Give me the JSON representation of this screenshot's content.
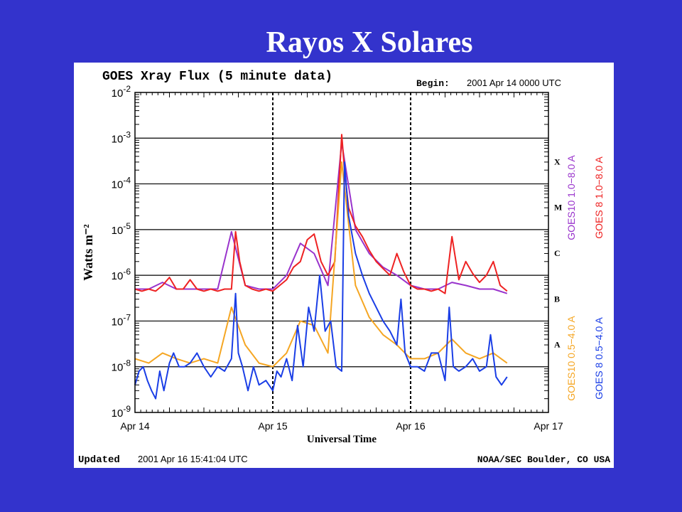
{
  "slide": {
    "title": "Rayos X Solares"
  },
  "header": {
    "title": "GOES Xray Flux (5 minute data)",
    "begin_label": "Begin:",
    "begin_value": "2001 Apr 14 0000 UTC"
  },
  "footer": {
    "updated_label": "Updated",
    "updated_value": "2001 Apr 16 15:41:04 UTC",
    "credit": "NOAA/SEC Boulder, CO USA"
  },
  "colors": {
    "slide_bg": "#3333cc",
    "chart_bg": "#ffffff",
    "long": "#ee2222",
    "short": "#1a3ee6",
    "goes10_short": "#f5a623",
    "goes10_long": "#9933cc"
  },
  "chart_data": {
    "type": "line",
    "title": "GOES Xray Flux (5 minute data)",
    "xlabel": "Universal Time",
    "ylabel": "Watts m⁻²",
    "y_scale": "log",
    "ylim": [
      1e-09,
      0.01
    ],
    "xlim": [
      0,
      3
    ],
    "x_ticks": [
      {
        "v": 0,
        "label": "Apr 14"
      },
      {
        "v": 1,
        "label": "Apr 15"
      },
      {
        "v": 2,
        "label": "Apr 16"
      },
      {
        "v": 3,
        "label": "Apr 17"
      }
    ],
    "y_ticks": [
      {
        "exp": -9,
        "label": "10",
        "sup": "-9"
      },
      {
        "exp": -8,
        "label": "10",
        "sup": "-8"
      },
      {
        "exp": -7,
        "label": "10",
        "sup": "-7"
      },
      {
        "exp": -6,
        "label": "10",
        "sup": "-6"
      },
      {
        "exp": -5,
        "label": "10",
        "sup": "-5"
      },
      {
        "exp": -4,
        "label": "10",
        "sup": "-4"
      },
      {
        "exp": -3,
        "label": "10",
        "sup": "-3"
      },
      {
        "exp": -2,
        "label": "10",
        "sup": "-2"
      }
    ],
    "flare_classes": [
      {
        "label": "A",
        "exp": -7.5
      },
      {
        "label": "B",
        "exp": -6.5
      },
      {
        "label": "C",
        "exp": -5.5
      },
      {
        "label": "M",
        "exp": -4.5
      },
      {
        "label": "X",
        "exp": -3.5
      }
    ],
    "series": [
      {
        "name": "GOES10 1.0−8.0 A",
        "color": "#9933cc",
        "x": [
          0,
          0.1,
          0.2,
          0.3,
          0.4,
          0.5,
          0.6,
          0.7,
          0.8,
          0.9,
          1.0,
          1.1,
          1.2,
          1.3,
          1.4,
          1.5,
          1.6,
          1.7,
          1.8,
          1.9,
          2.0,
          2.1,
          2.2,
          2.3,
          2.4,
          2.5,
          2.6,
          2.7
        ],
        "y": [
          5e-07,
          5e-07,
          7e-07,
          5e-07,
          5e-07,
          5e-07,
          5e-07,
          9e-06,
          6e-07,
          5e-07,
          5e-07,
          1e-06,
          5e-06,
          3e-06,
          6e-07,
          0.0008,
          1e-05,
          3e-06,
          1.5e-06,
          1e-06,
          6e-07,
          5e-07,
          5e-07,
          7e-07,
          6e-07,
          5e-07,
          5e-07,
          4e-07
        ]
      },
      {
        "name": "GOES 8 1.0−8.0 A",
        "color": "#ee2222",
        "x": [
          0,
          0.05,
          0.1,
          0.15,
          0.2,
          0.25,
          0.3,
          0.35,
          0.4,
          0.45,
          0.5,
          0.55,
          0.6,
          0.65,
          0.7,
          0.73,
          0.76,
          0.8,
          0.85,
          0.9,
          0.95,
          1.0,
          1.05,
          1.1,
          1.15,
          1.2,
          1.25,
          1.3,
          1.35,
          1.4,
          1.45,
          1.5,
          1.52,
          1.55,
          1.6,
          1.65,
          1.7,
          1.75,
          1.8,
          1.85,
          1.9,
          1.95,
          2.0,
          2.05,
          2.1,
          2.15,
          2.2,
          2.25,
          2.3,
          2.35,
          2.4,
          2.45,
          2.5,
          2.55,
          2.6,
          2.65,
          2.7
        ],
        "y": [
          5e-07,
          4.5e-07,
          5e-07,
          4.5e-07,
          6e-07,
          9e-07,
          5e-07,
          5e-07,
          8e-07,
          5e-07,
          4.5e-07,
          5e-07,
          4.5e-07,
          5e-07,
          5e-07,
          9e-06,
          2e-06,
          6e-07,
          5e-07,
          4.5e-07,
          5e-07,
          4.5e-07,
          6e-07,
          8e-07,
          1.5e-06,
          2e-06,
          6e-06,
          8e-06,
          2e-06,
          1e-06,
          2e-06,
          0.0012,
          0.0002,
          3e-05,
          1.2e-05,
          7e-06,
          3.5e-06,
          2e-06,
          1.4e-06,
          1e-06,
          3e-06,
          1.2e-06,
          6e-07,
          5e-07,
          5e-07,
          4.5e-07,
          5e-07,
          4e-07,
          7e-06,
          8e-07,
          2e-06,
          1.1e-06,
          7e-07,
          1e-06,
          2e-06,
          6e-07,
          4.5e-07
        ]
      },
      {
        "name": "GOES10 0.5−4.0 A",
        "color": "#f5a623",
        "x": [
          0,
          0.1,
          0.2,
          0.3,
          0.4,
          0.5,
          0.6,
          0.7,
          0.8,
          0.9,
          1.0,
          1.1,
          1.2,
          1.3,
          1.4,
          1.5,
          1.6,
          1.7,
          1.8,
          1.9,
          2.0,
          2.1,
          2.2,
          2.3,
          2.4,
          2.5,
          2.6,
          2.7
        ],
        "y": [
          1.5e-08,
          1.2e-08,
          2e-08,
          1.5e-08,
          1.2e-08,
          1.5e-08,
          1.2e-08,
          2e-07,
          3e-08,
          1.2e-08,
          1e-08,
          2e-08,
          1e-07,
          8e-08,
          2e-08,
          0.0003,
          6e-07,
          1.2e-07,
          5e-08,
          3e-08,
          1.5e-08,
          1.5e-08,
          2e-08,
          4e-08,
          2e-08,
          1.5e-08,
          2e-08,
          1.2e-08
        ]
      },
      {
        "name": "GOES 8 0.5−4.0 A",
        "color": "#1a3ee6",
        "x": [
          0,
          0.03,
          0.06,
          0.09,
          0.12,
          0.15,
          0.18,
          0.21,
          0.25,
          0.28,
          0.32,
          0.36,
          0.4,
          0.45,
          0.5,
          0.55,
          0.6,
          0.65,
          0.7,
          0.73,
          0.75,
          0.78,
          0.82,
          0.86,
          0.9,
          0.95,
          1.0,
          1.03,
          1.06,
          1.1,
          1.14,
          1.18,
          1.22,
          1.26,
          1.3,
          1.34,
          1.38,
          1.42,
          1.46,
          1.5,
          1.52,
          1.55,
          1.6,
          1.65,
          1.7,
          1.75,
          1.8,
          1.85,
          1.9,
          1.93,
          1.96,
          2.0,
          2.05,
          2.1,
          2.15,
          2.2,
          2.25,
          2.28,
          2.31,
          2.35,
          2.4,
          2.45,
          2.5,
          2.55,
          2.58,
          2.62,
          2.66,
          2.7
        ],
        "y": [
          4e-09,
          8e-09,
          1e-08,
          5e-09,
          3e-09,
          2e-09,
          8e-09,
          3e-09,
          1.2e-08,
          2e-08,
          1e-08,
          1e-08,
          1.2e-08,
          2e-08,
          1e-08,
          6e-09,
          1e-08,
          8e-09,
          1.5e-08,
          4e-07,
          2e-08,
          1e-08,
          3e-09,
          1e-08,
          4e-09,
          5e-09,
          3e-09,
          8e-09,
          6e-09,
          1.5e-08,
          5e-09,
          8e-08,
          1e-08,
          2e-07,
          6e-08,
          1e-06,
          6e-08,
          1e-07,
          1e-08,
          8e-09,
          0.0003,
          2e-05,
          3e-06,
          1e-06,
          4e-07,
          2e-07,
          1e-07,
          6e-08,
          3e-08,
          3e-07,
          2e-08,
          1e-08,
          1e-08,
          8e-09,
          2e-08,
          2e-08,
          5e-09,
          2e-07,
          1e-08,
          8e-09,
          1e-08,
          1.5e-08,
          8e-09,
          1e-08,
          5e-08,
          6e-09,
          4e-09,
          6e-09
        ]
      }
    ],
    "legend": [
      {
        "text": "GOES10 1.0−8.0 A",
        "color": "#9933cc",
        "col": 0,
        "pos": "top"
      },
      {
        "text": "GOES10 0.5−4.0 A",
        "color": "#f5a623",
        "col": 0,
        "pos": "bottom"
      },
      {
        "text": "GOES 8 1.0−8.0 A",
        "color": "#ee2222",
        "col": 1,
        "pos": "top"
      },
      {
        "text": "GOES 8 0.5−4.0 A",
        "color": "#1a3ee6",
        "col": 1,
        "pos": "bottom"
      }
    ],
    "legend_placement": "right-vertical",
    "grid": true
  }
}
